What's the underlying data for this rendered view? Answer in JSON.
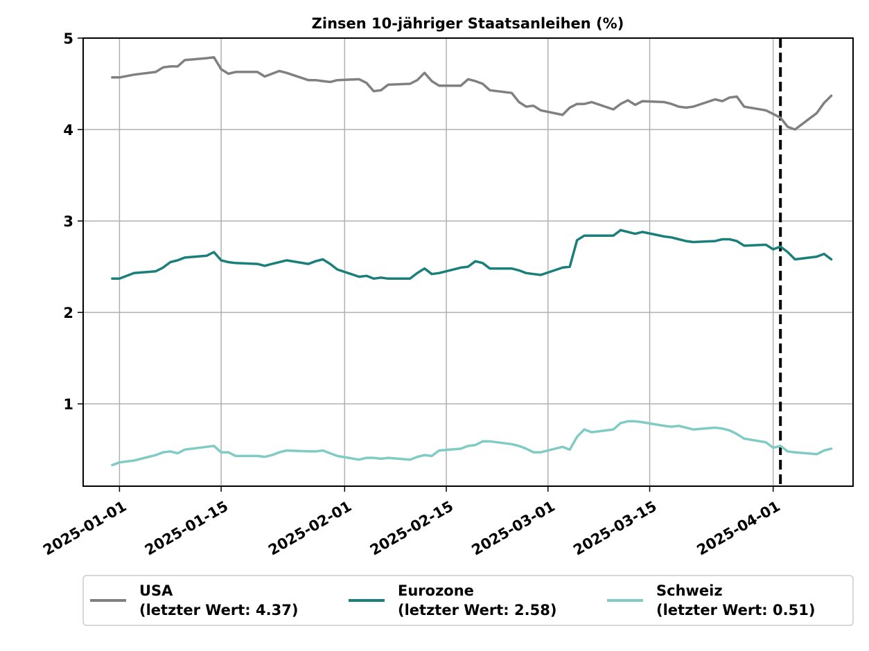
{
  "chart_data": {
    "type": "line",
    "title": "Zinsen 10-jähriger Staatsanleihen (%)",
    "xlabel": "",
    "ylabel": "",
    "ylim": [
      0.1,
      5.0
    ],
    "xlim": [
      "2024-12-27",
      "2025-04-12"
    ],
    "x_ticks": [
      "2025-01-01",
      "2025-01-15",
      "2025-02-01",
      "2025-02-15",
      "2025-03-01",
      "2025-03-15",
      "2025-04-01"
    ],
    "y_ticks": [
      1,
      2,
      3,
      4,
      5
    ],
    "grid": true,
    "legend_position": "bottom",
    "vertical_marker": {
      "x": "2025-04-02",
      "style": "dashed",
      "color": "#000000"
    },
    "series": [
      {
        "name": "USA",
        "legend": [
          "USA",
          "(letzter Wert: 4.37)"
        ],
        "color": "#808080",
        "points": [
          [
            "2024-12-31",
            4.57
          ],
          [
            "2025-01-01",
            4.57
          ],
          [
            "2025-01-03",
            4.6
          ],
          [
            "2025-01-06",
            4.63
          ],
          [
            "2025-01-07",
            4.68
          ],
          [
            "2025-01-08",
            4.69
          ],
          [
            "2025-01-09",
            4.69
          ],
          [
            "2025-01-10",
            4.76
          ],
          [
            "2025-01-13",
            4.78
          ],
          [
            "2025-01-14",
            4.79
          ],
          [
            "2025-01-15",
            4.66
          ],
          [
            "2025-01-16",
            4.61
          ],
          [
            "2025-01-17",
            4.63
          ],
          [
            "2025-01-20",
            4.63
          ],
          [
            "2025-01-21",
            4.58
          ],
          [
            "2025-01-22",
            4.61
          ],
          [
            "2025-01-23",
            4.64
          ],
          [
            "2025-01-24",
            4.62
          ],
          [
            "2025-01-27",
            4.54
          ],
          [
            "2025-01-28",
            4.54
          ],
          [
            "2025-01-29",
            4.53
          ],
          [
            "2025-01-30",
            4.52
          ],
          [
            "2025-01-31",
            4.54
          ],
          [
            "2025-02-03",
            4.55
          ],
          [
            "2025-02-04",
            4.51
          ],
          [
            "2025-02-05",
            4.42
          ],
          [
            "2025-02-06",
            4.43
          ],
          [
            "2025-02-07",
            4.49
          ],
          [
            "2025-02-10",
            4.5
          ],
          [
            "2025-02-11",
            4.54
          ],
          [
            "2025-02-12",
            4.62
          ],
          [
            "2025-02-13",
            4.53
          ],
          [
            "2025-02-14",
            4.48
          ],
          [
            "2025-02-17",
            4.48
          ],
          [
            "2025-02-18",
            4.55
          ],
          [
            "2025-02-19",
            4.53
          ],
          [
            "2025-02-20",
            4.5
          ],
          [
            "2025-02-21",
            4.43
          ],
          [
            "2025-02-24",
            4.4
          ],
          [
            "2025-02-25",
            4.3
          ],
          [
            "2025-02-26",
            4.25
          ],
          [
            "2025-02-27",
            4.26
          ],
          [
            "2025-02-28",
            4.21
          ],
          [
            "2025-03-03",
            4.16
          ],
          [
            "2025-03-04",
            4.24
          ],
          [
            "2025-03-05",
            4.28
          ],
          [
            "2025-03-06",
            4.28
          ],
          [
            "2025-03-07",
            4.3
          ],
          [
            "2025-03-10",
            4.22
          ],
          [
            "2025-03-11",
            4.28
          ],
          [
            "2025-03-12",
            4.32
          ],
          [
            "2025-03-13",
            4.27
          ],
          [
            "2025-03-14",
            4.31
          ],
          [
            "2025-03-17",
            4.3
          ],
          [
            "2025-03-18",
            4.28
          ],
          [
            "2025-03-19",
            4.25
          ],
          [
            "2025-03-20",
            4.24
          ],
          [
            "2025-03-21",
            4.25
          ],
          [
            "2025-03-24",
            4.33
          ],
          [
            "2025-03-25",
            4.31
          ],
          [
            "2025-03-26",
            4.35
          ],
          [
            "2025-03-27",
            4.36
          ],
          [
            "2025-03-28",
            4.25
          ],
          [
            "2025-03-31",
            4.21
          ],
          [
            "2025-04-01",
            4.17
          ],
          [
            "2025-04-02",
            4.13
          ],
          [
            "2025-04-03",
            4.03
          ],
          [
            "2025-04-04",
            4.0
          ],
          [
            "2025-04-07",
            4.18
          ],
          [
            "2025-04-08",
            4.29
          ],
          [
            "2025-04-09",
            4.37
          ]
        ]
      },
      {
        "name": "Eurozone",
        "legend": [
          "Eurozone",
          "(letzter Wert: 2.58)"
        ],
        "color": "#1a7f7a",
        "points": [
          [
            "2024-12-31",
            2.37
          ],
          [
            "2025-01-01",
            2.37
          ],
          [
            "2025-01-03",
            2.43
          ],
          [
            "2025-01-06",
            2.45
          ],
          [
            "2025-01-07",
            2.49
          ],
          [
            "2025-01-08",
            2.55
          ],
          [
            "2025-01-09",
            2.57
          ],
          [
            "2025-01-10",
            2.6
          ],
          [
            "2025-01-13",
            2.62
          ],
          [
            "2025-01-14",
            2.66
          ],
          [
            "2025-01-15",
            2.57
          ],
          [
            "2025-01-16",
            2.55
          ],
          [
            "2025-01-17",
            2.54
          ],
          [
            "2025-01-20",
            2.53
          ],
          [
            "2025-01-21",
            2.51
          ],
          [
            "2025-01-22",
            2.53
          ],
          [
            "2025-01-24",
            2.57
          ],
          [
            "2025-01-27",
            2.53
          ],
          [
            "2025-01-28",
            2.56
          ],
          [
            "2025-01-29",
            2.58
          ],
          [
            "2025-01-30",
            2.53
          ],
          [
            "2025-01-31",
            2.47
          ],
          [
            "2025-02-03",
            2.39
          ],
          [
            "2025-02-04",
            2.4
          ],
          [
            "2025-02-05",
            2.37
          ],
          [
            "2025-02-06",
            2.38
          ],
          [
            "2025-02-07",
            2.37
          ],
          [
            "2025-02-10",
            2.37
          ],
          [
            "2025-02-11",
            2.43
          ],
          [
            "2025-02-12",
            2.48
          ],
          [
            "2025-02-13",
            2.42
          ],
          [
            "2025-02-14",
            2.43
          ],
          [
            "2025-02-17",
            2.49
          ],
          [
            "2025-02-18",
            2.5
          ],
          [
            "2025-02-19",
            2.56
          ],
          [
            "2025-02-20",
            2.54
          ],
          [
            "2025-02-21",
            2.48
          ],
          [
            "2025-02-24",
            2.48
          ],
          [
            "2025-02-25",
            2.46
          ],
          [
            "2025-02-26",
            2.43
          ],
          [
            "2025-02-27",
            2.42
          ],
          [
            "2025-02-28",
            2.41
          ],
          [
            "2025-03-03",
            2.49
          ],
          [
            "2025-03-04",
            2.5
          ],
          [
            "2025-03-05",
            2.79
          ],
          [
            "2025-03-06",
            2.84
          ],
          [
            "2025-03-07",
            2.84
          ],
          [
            "2025-03-10",
            2.84
          ],
          [
            "2025-03-11",
            2.9
          ],
          [
            "2025-03-12",
            2.88
          ],
          [
            "2025-03-13",
            2.86
          ],
          [
            "2025-03-14",
            2.88
          ],
          [
            "2025-03-17",
            2.83
          ],
          [
            "2025-03-18",
            2.82
          ],
          [
            "2025-03-19",
            2.8
          ],
          [
            "2025-03-20",
            2.78
          ],
          [
            "2025-03-21",
            2.77
          ],
          [
            "2025-03-24",
            2.78
          ],
          [
            "2025-03-25",
            2.8
          ],
          [
            "2025-03-26",
            2.8
          ],
          [
            "2025-03-27",
            2.78
          ],
          [
            "2025-03-28",
            2.73
          ],
          [
            "2025-03-31",
            2.74
          ],
          [
            "2025-04-01",
            2.69
          ],
          [
            "2025-04-02",
            2.72
          ],
          [
            "2025-04-03",
            2.66
          ],
          [
            "2025-04-04",
            2.58
          ],
          [
            "2025-04-07",
            2.61
          ],
          [
            "2025-04-08",
            2.64
          ],
          [
            "2025-04-09",
            2.58
          ]
        ]
      },
      {
        "name": "Schweiz",
        "legend": [
          "Schweiz",
          "(letzter Wert: 0.51)"
        ],
        "color": "#80cbc4",
        "points": [
          [
            "2024-12-31",
            0.33
          ],
          [
            "2025-01-01",
            0.36
          ],
          [
            "2025-01-03",
            0.38
          ],
          [
            "2025-01-06",
            0.44
          ],
          [
            "2025-01-07",
            0.47
          ],
          [
            "2025-01-08",
            0.48
          ],
          [
            "2025-01-09",
            0.46
          ],
          [
            "2025-01-10",
            0.5
          ],
          [
            "2025-01-13",
            0.53
          ],
          [
            "2025-01-14",
            0.54
          ],
          [
            "2025-01-15",
            0.47
          ],
          [
            "2025-01-16",
            0.47
          ],
          [
            "2025-01-17",
            0.43
          ],
          [
            "2025-01-20",
            0.43
          ],
          [
            "2025-01-21",
            0.42
          ],
          [
            "2025-01-22",
            0.44
          ],
          [
            "2025-01-23",
            0.47
          ],
          [
            "2025-01-24",
            0.49
          ],
          [
            "2025-01-27",
            0.48
          ],
          [
            "2025-01-28",
            0.48
          ],
          [
            "2025-01-29",
            0.49
          ],
          [
            "2025-01-30",
            0.46
          ],
          [
            "2025-01-31",
            0.43
          ],
          [
            "2025-02-03",
            0.39
          ],
          [
            "2025-02-04",
            0.41
          ],
          [
            "2025-02-05",
            0.41
          ],
          [
            "2025-02-06",
            0.4
          ],
          [
            "2025-02-07",
            0.41
          ],
          [
            "2025-02-10",
            0.39
          ],
          [
            "2025-02-11",
            0.42
          ],
          [
            "2025-02-12",
            0.44
          ],
          [
            "2025-02-13",
            0.43
          ],
          [
            "2025-02-14",
            0.49
          ],
          [
            "2025-02-17",
            0.51
          ],
          [
            "2025-02-18",
            0.54
          ],
          [
            "2025-02-19",
            0.55
          ],
          [
            "2025-02-20",
            0.59
          ],
          [
            "2025-02-21",
            0.59
          ],
          [
            "2025-02-24",
            0.56
          ],
          [
            "2025-02-25",
            0.54
          ],
          [
            "2025-02-26",
            0.51
          ],
          [
            "2025-02-27",
            0.47
          ],
          [
            "2025-02-28",
            0.47
          ],
          [
            "2025-03-03",
            0.53
          ],
          [
            "2025-03-04",
            0.5
          ],
          [
            "2025-03-05",
            0.64
          ],
          [
            "2025-03-06",
            0.72
          ],
          [
            "2025-03-07",
            0.69
          ],
          [
            "2025-03-10",
            0.72
          ],
          [
            "2025-03-11",
            0.79
          ],
          [
            "2025-03-12",
            0.81
          ],
          [
            "2025-03-13",
            0.81
          ],
          [
            "2025-03-14",
            0.8
          ],
          [
            "2025-03-17",
            0.76
          ],
          [
            "2025-03-18",
            0.75
          ],
          [
            "2025-03-19",
            0.76
          ],
          [
            "2025-03-20",
            0.74
          ],
          [
            "2025-03-21",
            0.72
          ],
          [
            "2025-03-24",
            0.74
          ],
          [
            "2025-03-25",
            0.73
          ],
          [
            "2025-03-26",
            0.71
          ],
          [
            "2025-03-27",
            0.67
          ],
          [
            "2025-03-28",
            0.62
          ],
          [
            "2025-03-31",
            0.58
          ],
          [
            "2025-04-01",
            0.52
          ],
          [
            "2025-04-02",
            0.54
          ],
          [
            "2025-04-03",
            0.48
          ],
          [
            "2025-04-04",
            0.47
          ],
          [
            "2025-04-07",
            0.45
          ],
          [
            "2025-04-08",
            0.49
          ],
          [
            "2025-04-09",
            0.51
          ]
        ]
      }
    ]
  }
}
